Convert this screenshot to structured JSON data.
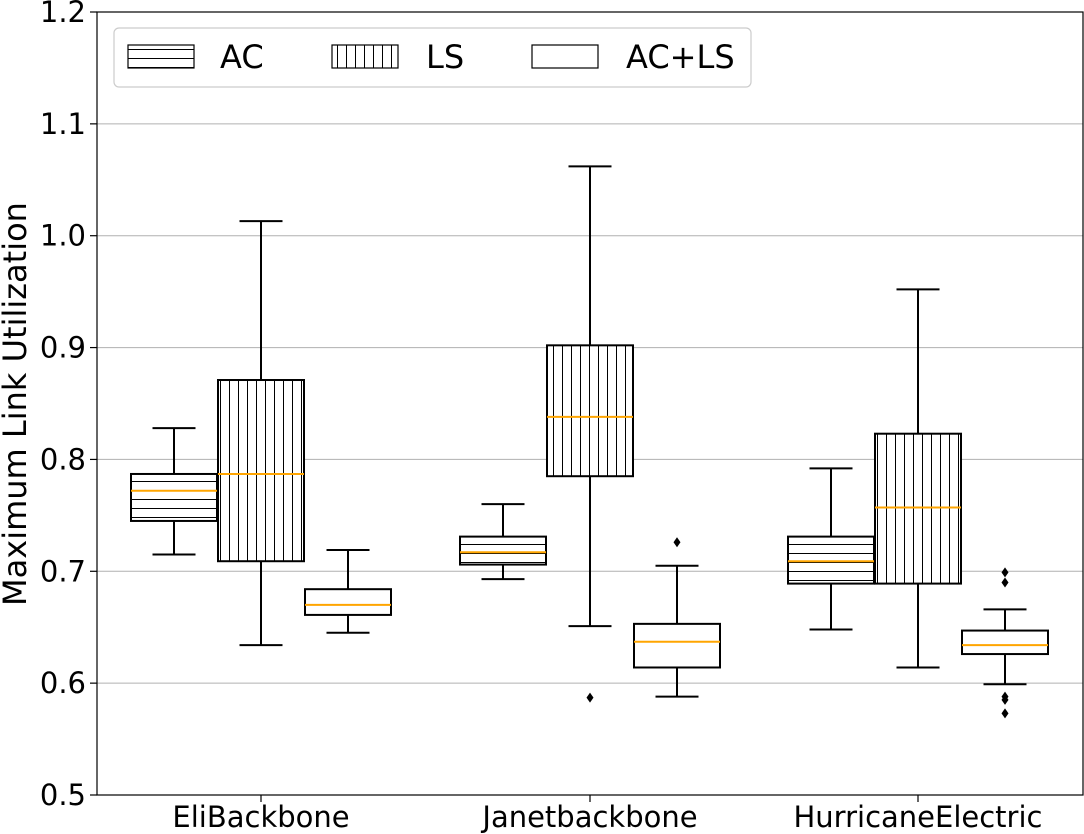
{
  "chart_data": {
    "type": "box",
    "title": "",
    "xlabel": "",
    "ylabel": "Maximum Link Utilization",
    "ylim": [
      0.5,
      1.2
    ],
    "yticks": [
      "0.5",
      "0.6",
      "0.7",
      "0.8",
      "0.9",
      "1.0",
      "1.1",
      "1.2"
    ],
    "ygrid": true,
    "legend_position": "top-left",
    "categories": [
      "EliBackbone",
      "Janetbackbone",
      "HurricaneElectric"
    ],
    "median_color": "#ffa500",
    "series": [
      {
        "name": "AC",
        "hatch": "horizontal",
        "boxes": [
          {
            "whislo": 0.715,
            "q1": 0.745,
            "med": 0.772,
            "q3": 0.787,
            "whishi": 0.828,
            "fliers": []
          },
          {
            "whislo": 0.693,
            "q1": 0.706,
            "med": 0.717,
            "q3": 0.731,
            "whishi": 0.76,
            "fliers": []
          },
          {
            "whislo": 0.648,
            "q1": 0.689,
            "med": 0.709,
            "q3": 0.731,
            "whishi": 0.792,
            "fliers": []
          }
        ]
      },
      {
        "name": "LS",
        "hatch": "vertical",
        "boxes": [
          {
            "whislo": 0.634,
            "q1": 0.709,
            "med": 0.787,
            "q3": 0.871,
            "whishi": 1.013,
            "fliers": []
          },
          {
            "whislo": 0.651,
            "q1": 0.785,
            "med": 0.838,
            "q3": 0.902,
            "whishi": 1.062,
            "fliers": [
              0.587
            ]
          },
          {
            "whislo": 0.614,
            "q1": 0.689,
            "med": 0.757,
            "q3": 0.823,
            "whishi": 0.952,
            "fliers": []
          }
        ]
      },
      {
        "name": "AC+LS",
        "hatch": "none",
        "boxes": [
          {
            "whislo": 0.645,
            "q1": 0.661,
            "med": 0.67,
            "q3": 0.684,
            "whishi": 0.719,
            "fliers": []
          },
          {
            "whislo": 0.588,
            "q1": 0.614,
            "med": 0.637,
            "q3": 0.653,
            "whishi": 0.705,
            "fliers": [
              0.726
            ]
          },
          {
            "whislo": 0.599,
            "q1": 0.626,
            "med": 0.634,
            "q3": 0.647,
            "whishi": 0.666,
            "fliers": [
              0.699,
              0.69,
              0.588,
              0.585,
              0.573
            ]
          }
        ]
      }
    ]
  }
}
